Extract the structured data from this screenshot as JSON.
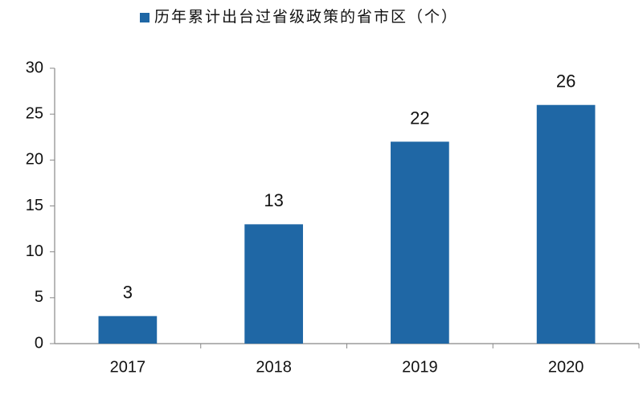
{
  "chart_data": {
    "type": "bar",
    "categories": [
      "2017",
      "2018",
      "2019",
      "2020"
    ],
    "series": [
      {
        "name": "历年累计出台过省级政策的省市区（个）",
        "color": "#1f67a5",
        "values": [
          3,
          13,
          22,
          26
        ]
      }
    ],
    "ylim": [
      0,
      30
    ],
    "yticks": [
      0,
      5,
      10,
      15,
      20,
      25,
      30
    ],
    "grid": false,
    "legend": "top",
    "data_labels": true
  }
}
